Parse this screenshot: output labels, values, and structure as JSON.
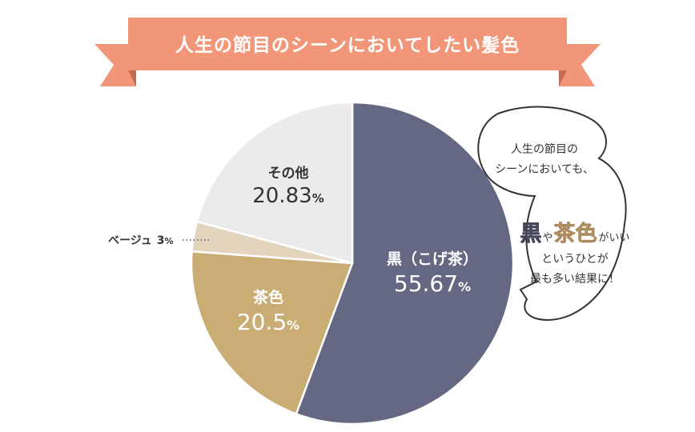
{
  "chart_data": {
    "type": "pie",
    "title": "人生の節目のシーンにおいてしたい髪色",
    "slices": [
      {
        "label": "黒（こげ茶）",
        "value": 55.67,
        "value_text": "55.67",
        "color": "#656882"
      },
      {
        "label": "茶色",
        "value": 20.5,
        "value_text": "20.5",
        "color": "#c9ad75"
      },
      {
        "label": "ベージュ",
        "value": 3,
        "value_text": "3",
        "color": "#e3d5bd"
      },
      {
        "label": "その他",
        "value": 20.83,
        "value_text": "20.83",
        "color": "#ebebeb"
      }
    ],
    "unit": "%",
    "start": "top, clockwise"
  },
  "bubble": {
    "line1": "人生の節目の",
    "line2": "シーンにおいても、",
    "kuro": "黒",
    "ya": "や",
    "chairo": "茶色",
    "gaii": "がいい",
    "line4": "というひとが",
    "line5": "最も多い結果に！"
  },
  "colors": {
    "banner": "#f2967a",
    "banner_dark": "#d97c63",
    "accent_brown": "#a8845a"
  }
}
